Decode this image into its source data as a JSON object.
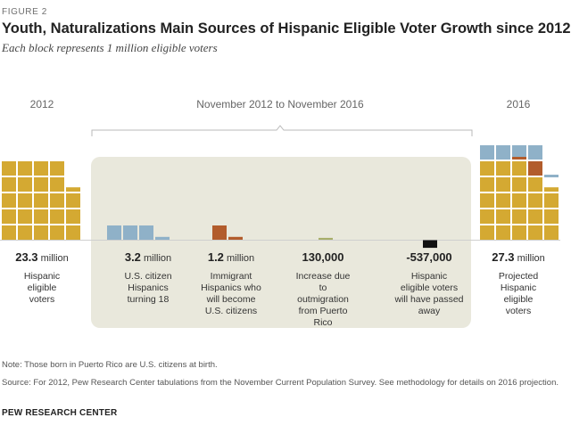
{
  "figure_label": "FIGURE 2",
  "title": "Youth, Naturalizations Main Sources of Hispanic Eligible Voter Growth since 2012",
  "subtitle": "Each block represents 1 million eligible voters",
  "period_labels": {
    "start": "2012",
    "middle": "November 2012 to November 2016",
    "end": "2016"
  },
  "colors": {
    "base": "#d4a932",
    "youth": "#8fb1c8",
    "naturalized": "#b25c2c",
    "puerto_rico": "#a8ae6a",
    "deaths": "#111111",
    "panel": "#e9e8dc"
  },
  "chart_data": {
    "type": "waffle",
    "unit": "1 million eligible voters per block",
    "components": [
      {
        "value_text": "23.3",
        "unit_text": "million",
        "value_millions": 23.3,
        "label": "Hispanic eligible voters"
      },
      {
        "value_text": "3.2",
        "unit_text": "million",
        "value_millions": 3.2,
        "label": "U.S. citizen Hispanics turning 18"
      },
      {
        "value_text": "1.2",
        "unit_text": "million",
        "value_millions": 1.2,
        "label": "Immigrant Hispanics who will become U.S. citizens"
      },
      {
        "value_text": "130,000",
        "unit_text": "",
        "value_millions": 0.13,
        "label": "Increase due to outmigration from Puerto Rico"
      },
      {
        "value_text": "-537,000",
        "unit_text": "",
        "value_millions": -0.537,
        "label": "Hispanic eligible voters will have passed away"
      },
      {
        "value_text": "27.3",
        "unit_text": "million",
        "value_millions": 27.3,
        "label": "Projected Hispanic eligible voters"
      }
    ]
  },
  "notes": {
    "note": "Note: Those born in Puerto Rico are U.S. citizens at birth.",
    "source": "Source: For 2012, Pew Research Center tabulations from the November Current Population Survey. See methodology for details on 2016 projection.",
    "brand": "PEW RESEARCH CENTER"
  }
}
